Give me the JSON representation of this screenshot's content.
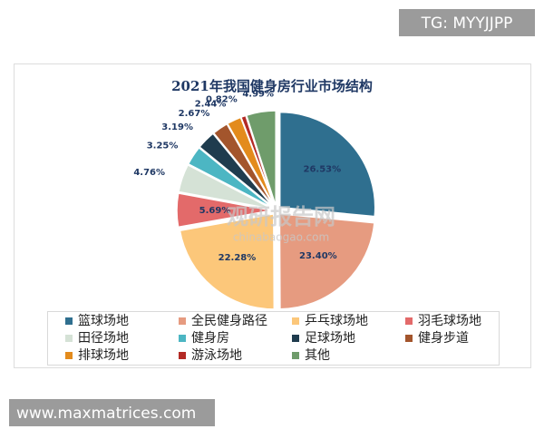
{
  "chart_data": {
    "type": "pie",
    "title": "2021年我国健身房行业市场结构",
    "categories": [
      "篮球场地",
      "全民健身路径",
      "乒乓球场地",
      "羽毛球场地",
      "田径场地",
      "健身房",
      "足球场地",
      "健身步道",
      "排球场地",
      "游泳场地",
      "其他"
    ],
    "values": [
      26.53,
      23.4,
      22.28,
      5.69,
      4.76,
      3.25,
      3.19,
      2.67,
      2.44,
      0.82,
      4.99
    ],
    "value_labels": [
      "26.53%",
      "23.40%",
      "22.28%",
      "5.69%",
      "4.76%",
      "3.25%",
      "3.19%",
      "2.67%",
      "2.44%",
      "0.82%",
      "4.99%"
    ],
    "colors": [
      "#2f6f8f",
      "#e69b80",
      "#fcc77a",
      "#e36a6a",
      "#d5e2d6",
      "#4cb6c3",
      "#1f3c4e",
      "#a3552c",
      "#e38b1c",
      "#b32a25",
      "#6f9c6b"
    ],
    "legend": "bottom"
  },
  "watermark": {
    "logo": "观研报告网",
    "url": "chinabaogao.com"
  },
  "header_tag": "TG: MYYJJPP",
  "footer_url": "www.maxmatrices.com"
}
